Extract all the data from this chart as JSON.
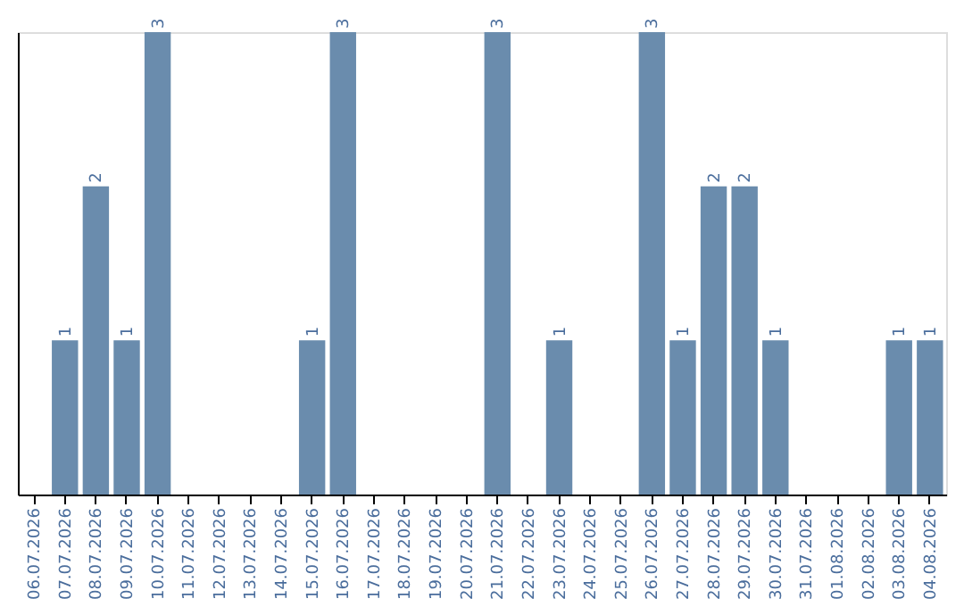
{
  "chart_data": {
    "type": "bar",
    "categories": [
      "06.07.2026",
      "07.07.2026",
      "08.07.2026",
      "09.07.2026",
      "10.07.2026",
      "11.07.2026",
      "12.07.2026",
      "13.07.2026",
      "14.07.2026",
      "15.07.2026",
      "16.07.2026",
      "17.07.2026",
      "18.07.2026",
      "19.07.2026",
      "20.07.2026",
      "21.07.2026",
      "22.07.2026",
      "23.07.2026",
      "24.07.2026",
      "25.07.2026",
      "26.07.2026",
      "27.07.2026",
      "28.07.2026",
      "29.07.2026",
      "30.07.2026",
      "31.07.2026",
      "01.08.2026",
      "02.08.2026",
      "03.08.2026",
      "04.08.2026"
    ],
    "values": [
      0,
      1,
      2,
      1,
      3,
      0,
      0,
      0,
      0,
      1,
      3,
      0,
      0,
      0,
      0,
      3,
      0,
      1,
      0,
      0,
      3,
      1,
      2,
      2,
      1,
      0,
      0,
      0,
      1,
      1
    ],
    "value_labels": [
      null,
      "1",
      "2",
      "1",
      "3",
      null,
      null,
      null,
      null,
      "1",
      "3",
      null,
      null,
      null,
      null,
      "3",
      null,
      "1",
      null,
      null,
      "3",
      "1",
      "2",
      "2",
      "1",
      null,
      null,
      null,
      "1",
      "1"
    ],
    "color": "#6a8cad",
    "ylim": [
      0,
      3
    ],
    "tick_labels": "x"
  }
}
